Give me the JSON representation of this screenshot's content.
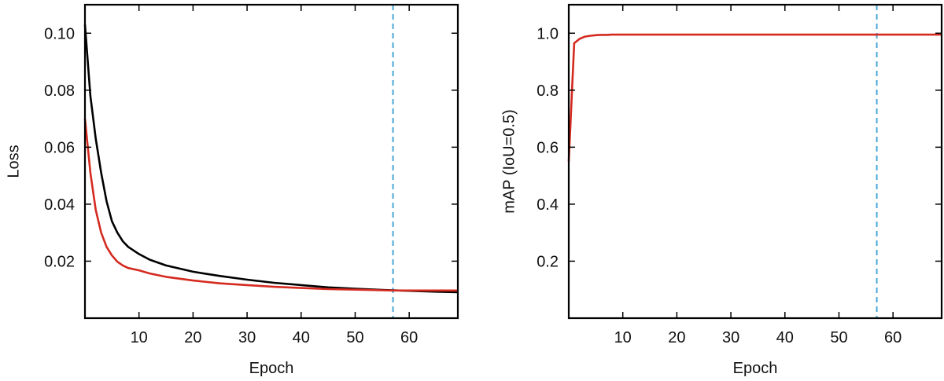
{
  "chart_data": [
    {
      "id": "loss",
      "type": "line",
      "xlabel": "Epoch",
      "ylabel": "Loss",
      "xlim": [
        0,
        69
      ],
      "ylim": [
        0,
        0.11
      ],
      "xticks": [
        10,
        20,
        30,
        40,
        50,
        60
      ],
      "yticks": [
        0.02,
        0.04,
        0.06,
        0.08,
        0.1
      ],
      "ytick_labels": [
        "0.02",
        "0.04",
        "0.06",
        "0.08",
        "0.10"
      ],
      "vline_x": 57,
      "vline_color": "#4aa8d8",
      "grid": false,
      "series": [
        {
          "color": "#000000",
          "x": [
            0,
            1,
            2,
            3,
            4,
            5,
            6,
            7,
            8,
            10,
            12,
            15,
            20,
            25,
            30,
            35,
            40,
            45,
            50,
            55,
            57,
            60,
            65,
            69
          ],
          "y": [
            0.103,
            0.078,
            0.063,
            0.051,
            0.041,
            0.034,
            0.03,
            0.027,
            0.025,
            0.0225,
            0.0205,
            0.0185,
            0.0163,
            0.0148,
            0.0135,
            0.0124,
            0.0116,
            0.0108,
            0.0103,
            0.0099,
            0.0098,
            0.0096,
            0.0093,
            0.0091
          ]
        },
        {
          "color": "#d42a20",
          "x": [
            0,
            1,
            2,
            3,
            4,
            5,
            6,
            7,
            8,
            10,
            12,
            15,
            20,
            25,
            30,
            35,
            40,
            45,
            50,
            55,
            57,
            60,
            65,
            69
          ],
          "y": [
            0.07,
            0.051,
            0.038,
            0.03,
            0.025,
            0.022,
            0.0198,
            0.0185,
            0.0176,
            0.0168,
            0.0157,
            0.0145,
            0.0132,
            0.0122,
            0.0116,
            0.011,
            0.0106,
            0.0102,
            0.01,
            0.0098,
            0.0097,
            0.0097,
            0.0097,
            0.0097
          ]
        }
      ]
    },
    {
      "id": "map",
      "type": "line",
      "xlabel": "Epoch",
      "ylabel": "mAP (IoU=0.5)",
      "xlim": [
        0,
        69
      ],
      "ylim": [
        0,
        1.1
      ],
      "xticks": [
        10,
        20,
        30,
        40,
        50,
        60
      ],
      "yticks": [
        0.2,
        0.4,
        0.6,
        0.8,
        1.0
      ],
      "ytick_labels": [
        "0.2",
        "0.4",
        "0.6",
        "0.8",
        "1.0"
      ],
      "vline_x": 57,
      "vline_color": "#4aa8d8",
      "grid": false,
      "series": [
        {
          "color": "#d42a20",
          "x": [
            0,
            1,
            2,
            3,
            4,
            5,
            6,
            7,
            8,
            10,
            20,
            30,
            40,
            50,
            57,
            60,
            69
          ],
          "y": [
            0.55,
            0.965,
            0.98,
            0.988,
            0.991,
            0.993,
            0.994,
            0.994,
            0.995,
            0.995,
            0.995,
            0.995,
            0.995,
            0.995,
            0.995,
            0.995,
            0.995
          ]
        }
      ]
    }
  ]
}
